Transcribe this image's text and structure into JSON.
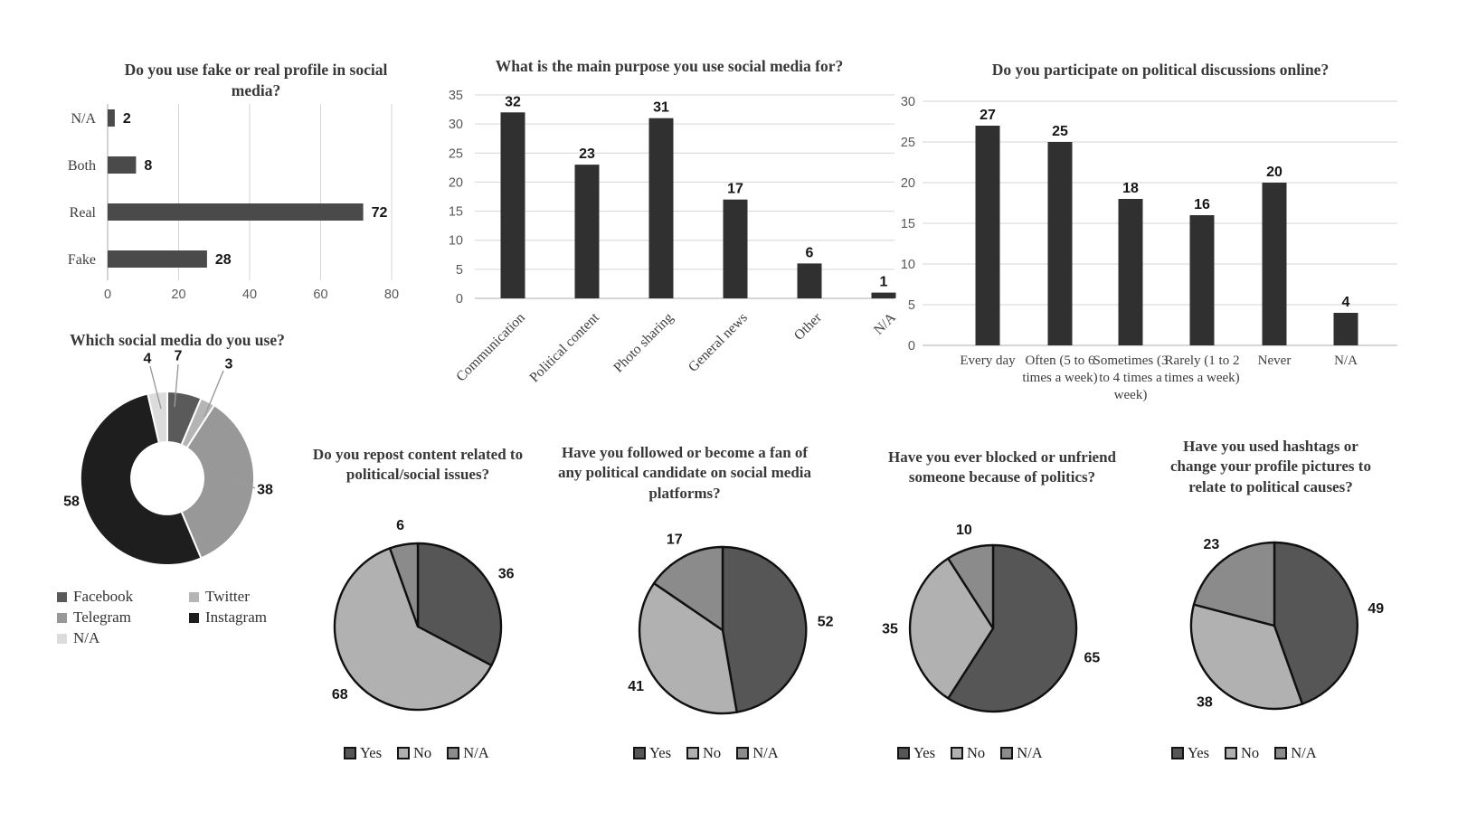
{
  "figure": {
    "background": "#ffffff"
  },
  "chart_data": [
    {
      "id": "profile-type",
      "type": "bar",
      "orientation": "horizontal",
      "title": "Do you use fake or real profile in social\nmedia?",
      "categories": [
        "N/A",
        "Both",
        "Real",
        "Fake"
      ],
      "values": [
        2,
        8,
        72,
        28
      ],
      "xlim": [
        0,
        80
      ],
      "xticks": [
        0,
        20,
        40,
        60,
        80
      ],
      "grid": "vertical",
      "bar_color": "#4a4a4a"
    },
    {
      "id": "main-purpose",
      "type": "bar",
      "orientation": "vertical",
      "title": "What is the main purpose you use social media for?",
      "categories": [
        "Communication",
        "Political content",
        "Photo sharing",
        "General news",
        "Other",
        "N/A"
      ],
      "values": [
        32,
        23,
        31,
        17,
        6,
        1
      ],
      "ylim": [
        0,
        35
      ],
      "yticks": [
        0,
        5,
        10,
        15,
        20,
        25,
        30,
        35
      ],
      "grid": "horizontal",
      "category_label_rotation_deg": -45,
      "bar_color": "#303030"
    },
    {
      "id": "political-discussions",
      "type": "bar",
      "orientation": "vertical",
      "title": "Do you participate on political discussions online?",
      "categories": [
        "Every day",
        "Often (5 to 6 times a week)",
        "Sometimes (3 to 4 times a week)",
        "Rarely (1 to 2 times a week)",
        "Never",
        "N/A"
      ],
      "values": [
        27,
        25,
        18,
        16,
        20,
        4
      ],
      "ylim": [
        0,
        30
      ],
      "yticks": [
        0,
        5,
        10,
        15,
        20,
        25,
        30
      ],
      "grid": "horizontal",
      "bar_color": "#303030"
    },
    {
      "id": "social-media-used",
      "type": "pie",
      "subtype": "donut",
      "title": "Which social media do you use?",
      "categories": [
        "Facebook",
        "Twitter",
        "Telegram",
        "Instagram",
        "N/A"
      ],
      "values": [
        7,
        3,
        38,
        58,
        4
      ],
      "colors": [
        "#5a5a5a",
        "#b5b5b5",
        "#989898",
        "#1e1e1e",
        "#dcdcdc"
      ],
      "legend_position": "bottom-left"
    },
    {
      "id": "repost-content",
      "type": "pie",
      "title": "Do you repost content related to\npolitical/social issues?",
      "categories": [
        "Yes",
        "No",
        "N/A"
      ],
      "values": [
        36,
        68,
        6
      ],
      "colors": [
        "#565656",
        "#b1b1b1",
        "#8b8b8b"
      ],
      "legend_position": "bottom"
    },
    {
      "id": "followed-candidate",
      "type": "pie",
      "title": "Have you followed or become a fan of\nany political candidate on social media\nplatforms?",
      "categories": [
        "Yes",
        "No",
        "N/A"
      ],
      "values": [
        52,
        41,
        17
      ],
      "colors": [
        "#565656",
        "#b1b1b1",
        "#8b8b8b"
      ],
      "legend_position": "bottom"
    },
    {
      "id": "blocked-someone",
      "type": "pie",
      "title": "Have you ever blocked or unfriend\nsomeone because of politics?",
      "categories": [
        "Yes",
        "No",
        "N/A"
      ],
      "values": [
        65,
        35,
        10
      ],
      "colors": [
        "#565656",
        "#b1b1b1",
        "#8b8b8b"
      ],
      "legend_position": "bottom"
    },
    {
      "id": "hashtags-profile",
      "type": "pie",
      "title": "Have you used hashtags or\nchange your profile pictures to\nrelate to political causes?",
      "categories": [
        "Yes",
        "No",
        "N/A"
      ],
      "values": [
        49,
        38,
        23
      ],
      "colors": [
        "#565656",
        "#b1b1b1",
        "#8b8b8b"
      ],
      "legend_position": "bottom"
    }
  ]
}
